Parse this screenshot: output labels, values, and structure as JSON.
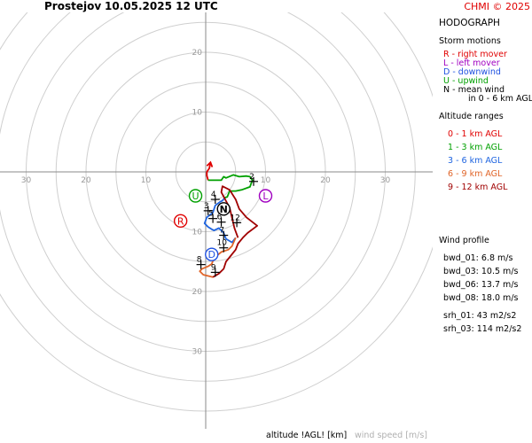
{
  "header": {
    "station": "Prostejov",
    "datetime": "10.05.2025 12 UTC",
    "copyright": "CHMI © 2025"
  },
  "legend": {
    "title": "HODOGRAPH",
    "storm_heading": "Storm motions",
    "motions": [
      {
        "text": "R - right mover",
        "color": "#e00000"
      },
      {
        "text": "L - left mover",
        "color": "#a000c0"
      },
      {
        "text": "D - downwind",
        "color": "#1e50e0"
      },
      {
        "text": "U - upwind",
        "color": "#00a000"
      },
      {
        "text": "N - mean wind",
        "color": "#000000"
      },
      {
        "text": "in 0 - 6 km AGL",
        "color": "#000000"
      }
    ],
    "altitude_heading": "Altitude ranges",
    "ranges": [
      {
        "text": "0 - 1 km AGL",
        "color": "#e00000"
      },
      {
        "text": "1 - 3 km AGL",
        "color": "#00a000"
      },
      {
        "text": "3 - 6 km AGL",
        "color": "#1e64e0"
      },
      {
        "text": "6 - 9 km AGL",
        "color": "#e06428"
      },
      {
        "text": "9 - 12 km AGL",
        "color": "#a00000"
      }
    ],
    "profile_heading": "Wind profile",
    "profile": [
      "bwd_01: 6.8 m/s",
      "bwd_03: 10.5 m/s",
      "bwd_06: 13.7 m/s",
      "bwd_08: 18.0 m/s",
      "srh_01: 43 m2/s2",
      "srh_03: 114 m2/s2"
    ]
  },
  "footer": {
    "altitude_label": "altitude !AGL! [km]",
    "speed_label": "wind speed [m/s]"
  },
  "chart_data": {
    "type": "hodograph",
    "title": "HODOGRAPH",
    "rings_m_s": [
      5,
      10,
      15,
      20,
      25,
      30,
      35,
      40
    ],
    "axis_tick_labels": {
      "horizontal": [
        "30",
        "20",
        "10",
        "10",
        "20",
        "30"
      ],
      "vertical": [
        "20",
        "10",
        "10",
        "20",
        "30"
      ]
    },
    "grid": true,
    "storm_motions": [
      {
        "label": "R",
        "u": -4.2,
        "v": -8.2,
        "color": "#e00000"
      },
      {
        "label": "L",
        "u": 10.0,
        "v": -4.0,
        "color": "#a000c0"
      },
      {
        "label": "D",
        "u": 1.0,
        "v": -13.8,
        "color": "#1e50e0"
      },
      {
        "label": "U",
        "u": -1.7,
        "v": -4.0,
        "color": "#00a000"
      },
      {
        "label": "N",
        "u": 3.0,
        "v": -6.2,
        "color": "#000000"
      }
    ],
    "segments": [
      {
        "range": "0 - 1 km AGL",
        "color": "#e00000",
        "points": [
          [
            0.8,
            1.6
          ],
          [
            0.6,
            0.6
          ],
          [
            0.2,
            0
          ],
          [
            0.2,
            -0.6
          ],
          [
            0.4,
            -1.4
          ]
        ]
      },
      {
        "range": "1 - 3 km AGL",
        "color": "#00a000",
        "points": [
          [
            0.4,
            -1.4
          ],
          [
            2.6,
            -1.4
          ],
          [
            3.0,
            -0.8
          ],
          [
            3.4,
            -1.0
          ],
          [
            4.6,
            -0.5
          ],
          [
            5.6,
            -0.8
          ],
          [
            6.8,
            -0.7
          ],
          [
            7.4,
            -0.8
          ],
          [
            7.8,
            -1.4
          ],
          [
            7.4,
            -2.5
          ],
          [
            6.0,
            -3.0
          ],
          [
            5.0,
            -3.2
          ],
          [
            4.0,
            -3.2
          ],
          [
            3.6,
            -4.2
          ],
          [
            3.2,
            -4.3
          ]
        ]
      },
      {
        "range": "3 - 6 km AGL",
        "color": "#1e64e0",
        "points": [
          [
            3.2,
            -4.3
          ],
          [
            2.8,
            -4.8
          ],
          [
            2.4,
            -5.0
          ],
          [
            1.6,
            -5.6
          ],
          [
            1.2,
            -6.8
          ],
          [
            0.2,
            -7.6
          ],
          [
            -0.2,
            -8.6
          ],
          [
            0.4,
            -9.2
          ],
          [
            1.0,
            -9.6
          ],
          [
            1.4,
            -9.8
          ],
          [
            2.2,
            -9.4
          ],
          [
            3.0,
            -10.2
          ],
          [
            3.4,
            -11.2
          ],
          [
            4.4,
            -11.8
          ],
          [
            5.0,
            -11.0
          ]
        ]
      },
      {
        "range": "6 - 9 km AGL",
        "color": "#e06428",
        "points": [
          [
            5.0,
            -11.0
          ],
          [
            4.4,
            -12.4
          ],
          [
            3.8,
            -13.0
          ],
          [
            2.6,
            -13.4
          ],
          [
            1.4,
            -14.4
          ],
          [
            1.0,
            -15.4
          ],
          [
            0.4,
            -15.8
          ],
          [
            -0.6,
            -16.2
          ],
          [
            -1.0,
            -16.6
          ],
          [
            -0.4,
            -17.2
          ],
          [
            1.2,
            -17.6
          ]
        ]
      },
      {
        "range": "9 - 12 km AGL",
        "color": "#a00000",
        "points": [
          [
            1.2,
            -17.6
          ],
          [
            2.2,
            -17.0
          ],
          [
            3.0,
            -16.2
          ],
          [
            3.4,
            -15.0
          ],
          [
            4.2,
            -14.0
          ],
          [
            5.0,
            -13.0
          ],
          [
            5.4,
            -12.0
          ],
          [
            6.2,
            -11.0
          ],
          [
            7.0,
            -10.2
          ],
          [
            8.6,
            -9.0
          ],
          [
            6.8,
            -7.6
          ],
          [
            5.6,
            -6.2
          ],
          [
            5.0,
            -4.6
          ],
          [
            4.0,
            -3.0
          ],
          [
            2.8,
            -2.4
          ],
          [
            2.6,
            -3.4
          ],
          [
            4.0,
            -6.0
          ],
          [
            4.8,
            -9.4
          ],
          [
            5.4,
            -11.0
          ]
        ]
      }
    ],
    "altitude_marks": [
      {
        "label": "2",
        "u": 8.0,
        "v": -1.6
      },
      {
        "label": "4",
        "u": 1.6,
        "v": -4.6
      },
      {
        "label": "3",
        "u": 0.4,
        "v": -6.5
      },
      {
        "label": "5",
        "u": 1.2,
        "v": -7.8
      },
      {
        "label": "6",
        "u": 2.6,
        "v": -8.4
      },
      {
        "label": "12",
        "u": 5.2,
        "v": -8.5
      },
      {
        "label": "7",
        "u": 3.0,
        "v": -10.6
      },
      {
        "label": "10",
        "u": 3.0,
        "v": -12.7
      },
      {
        "label": "8",
        "u": -0.8,
        "v": -15.5
      },
      {
        "label": "9",
        "u": 1.6,
        "v": -16.8
      }
    ],
    "footer_labels": [
      "altitude !AGL! [km]",
      "wind speed [m/s]"
    ]
  }
}
